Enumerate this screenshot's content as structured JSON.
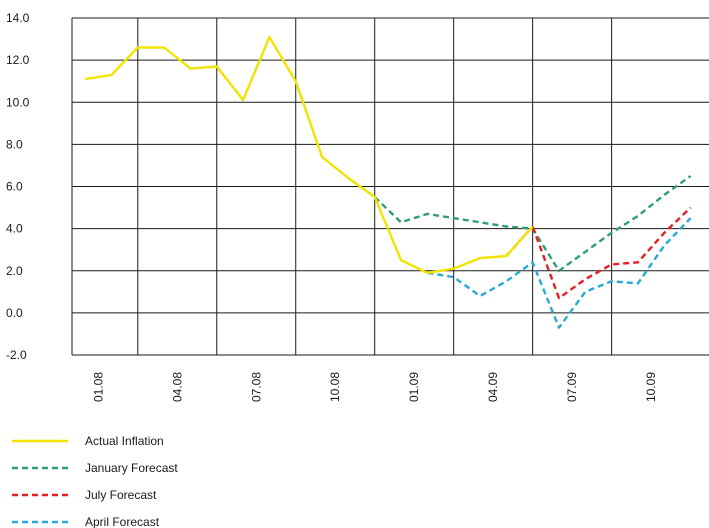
{
  "chart_data": {
    "type": "line",
    "title": "",
    "xlabel": "",
    "ylabel": "",
    "ylim": [
      -2.0,
      14.0
    ],
    "y_ticks": [
      "14.0",
      "12.0",
      "10.0",
      "8.0",
      "6.0",
      "4.0",
      "2.0",
      "0.0",
      "-2.0"
    ],
    "x_ticks": [
      "01.08",
      "04.08",
      "07.08",
      "10.08",
      "01.09",
      "04.09",
      "07.09",
      "10.09"
    ],
    "x_months": [
      1,
      4,
      7,
      10,
      13,
      16,
      19,
      22
    ],
    "x_range": [
      -0.5,
      23.7
    ],
    "grid": true,
    "legend_position": "bottom-left",
    "series": [
      {
        "name": "Actual Inflation",
        "color": "#f0e400",
        "dash": "solid",
        "x": [
          0,
          1,
          2,
          3,
          4,
          5,
          6,
          7,
          8,
          9,
          10,
          11,
          12,
          13,
          14,
          15,
          16,
          17
        ],
        "y": [
          11.1,
          11.3,
          12.6,
          12.6,
          11.6,
          11.7,
          10.1,
          13.1,
          11.0,
          7.4,
          6.4,
          5.5,
          2.5,
          1.9,
          2.1,
          2.6,
          2.7,
          4.1
        ]
      },
      {
        "name": "January Forecast",
        "color": "#2f9f6e",
        "dash": "dashed",
        "x": [
          11,
          12,
          13,
          14,
          15,
          16,
          17,
          18,
          19,
          20,
          21,
          22,
          23
        ],
        "y": [
          5.5,
          4.3,
          4.7,
          4.5,
          4.3,
          4.1,
          4.0,
          2.0,
          2.9,
          3.8,
          4.6,
          5.6,
          6.5
        ]
      },
      {
        "name": "July Forecast",
        "color": "#e31e24",
        "dash": "dashed",
        "x": [
          16,
          17,
          18,
          19,
          20,
          21,
          22,
          23
        ],
        "y": [
          2.7,
          4.1,
          0.7,
          1.6,
          2.3,
          2.4,
          3.8,
          5.0
        ]
      },
      {
        "name": "April Forecast",
        "color": "#28a9d8",
        "dash": "dashed",
        "x": [
          13,
          14,
          15,
          16,
          17,
          18,
          19,
          20,
          21,
          22,
          23
        ],
        "y": [
          1.9,
          1.7,
          0.8,
          1.5,
          2.4,
          -0.7,
          1.0,
          1.5,
          1.4,
          3.2,
          4.5
        ]
      }
    ]
  }
}
